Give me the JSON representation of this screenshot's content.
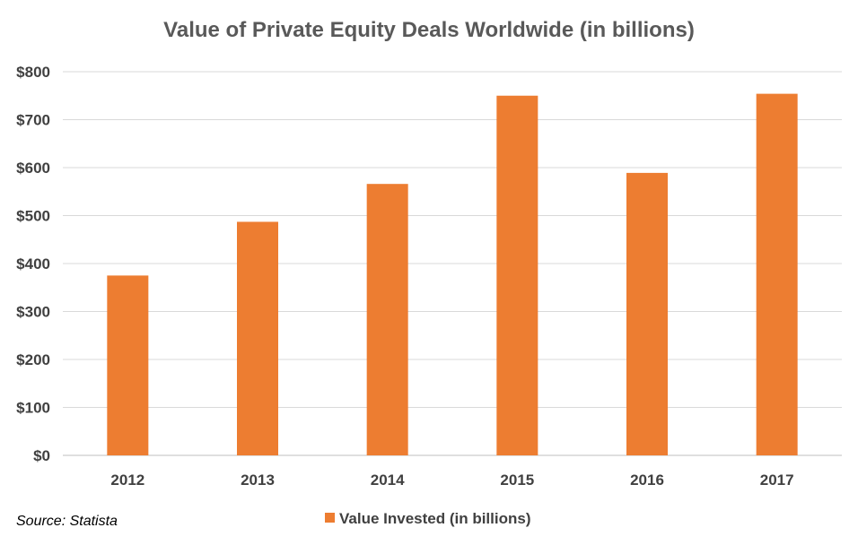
{
  "chart_data": {
    "type": "bar",
    "title": "Value of Private Equity Deals Worldwide (in billions)",
    "categories": [
      "2012",
      "2013",
      "2014",
      "2015",
      "2016",
      "2017"
    ],
    "series": [
      {
        "name": "Value Invested (in billions)",
        "values": [
          375,
          487,
          566,
          750,
          589,
          754
        ],
        "color": "#ed7d31"
      }
    ],
    "ylim": [
      0,
      800
    ],
    "yticks": [
      0,
      100,
      200,
      300,
      400,
      500,
      600,
      700,
      800
    ],
    "ytick_labels": [
      "$0",
      "$100",
      "$200",
      "$300",
      "$400",
      "$500",
      "$600",
      "$700",
      "$800"
    ],
    "grid": true,
    "legend_position": "bottom"
  },
  "source_note": "Source: Statista"
}
